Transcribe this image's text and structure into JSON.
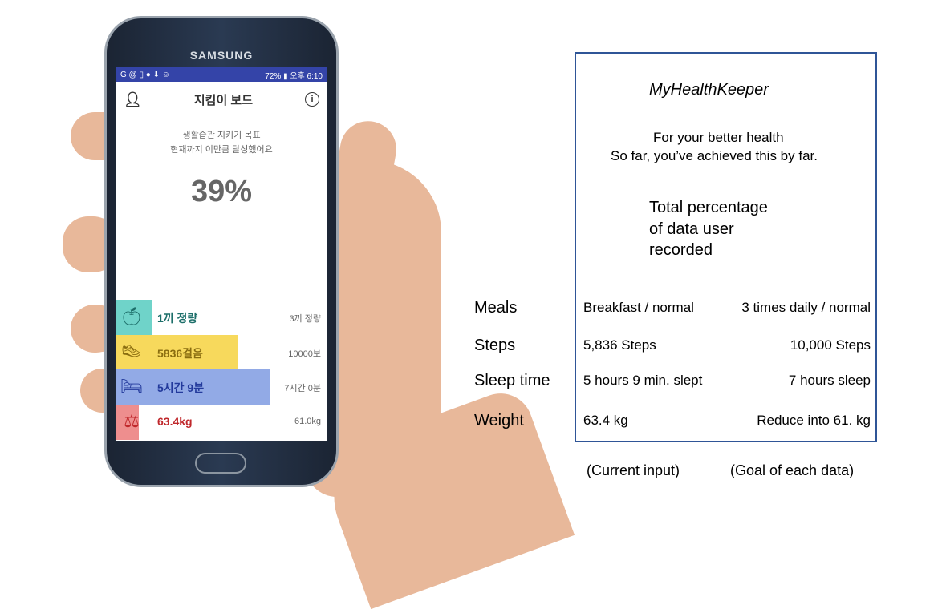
{
  "phone": {
    "brand": "SAMSUNG",
    "status": {
      "left_icons": "G @ ▯ ● ⬇ ☺",
      "right": "72% ▮ 오후 6:10"
    },
    "header": {
      "title": "지킴이 보드"
    },
    "subtitle_line1": "생활습관 지키기 목표",
    "subtitle_line2": "현재까지 이만큼 달성했어요",
    "percent": "39%",
    "rows": [
      {
        "icon": "apple-icon",
        "value": "1끼 정량",
        "goal": "3끼 정량",
        "color": "#6fd3c9",
        "text_color": "#1d6f6a",
        "progress": 0.17
      },
      {
        "icon": "shoe-icon",
        "value": "5836걸음",
        "goal": "10000보",
        "color": "#f7d95c",
        "text_color": "#8a6d10",
        "progress": 0.58
      },
      {
        "icon": "bed-icon",
        "value": "5시간 9분",
        "goal": "7시간 0분",
        "color": "#92aae6",
        "text_color": "#233a9c",
        "progress": 0.73
      },
      {
        "icon": "scale-icon",
        "value": "63.4kg",
        "goal": "61.0kg",
        "color": "#ee8e8e",
        "text_color": "#c0282c",
        "progress": 0.11
      }
    ]
  },
  "panel": {
    "app_name": "MyHealthKeeper",
    "line1": "For your better health",
    "line2": "So far, you’ve achieved this by far.",
    "total1": "Total percentage",
    "total2": "of data user",
    "total3": "recorded",
    "rows": [
      {
        "label": "Meals",
        "current": "Breakfast / normal",
        "goal": "3 times daily / normal"
      },
      {
        "label": "Steps",
        "current": "5,836 Steps",
        "goal": "10,000 Steps"
      },
      {
        "label": "Sleep time",
        "current": "5 hours 9 min. slept",
        "goal": "7 hours sleep"
      },
      {
        "label": "Weight",
        "current": "63.4 kg",
        "goal": "Reduce into 61. kg"
      }
    ],
    "current_caption": "(Current input)",
    "goal_caption": "(Goal of each data)"
  },
  "colors": {
    "status_bar": "#3444a8",
    "panel_border": "#2f5597"
  }
}
